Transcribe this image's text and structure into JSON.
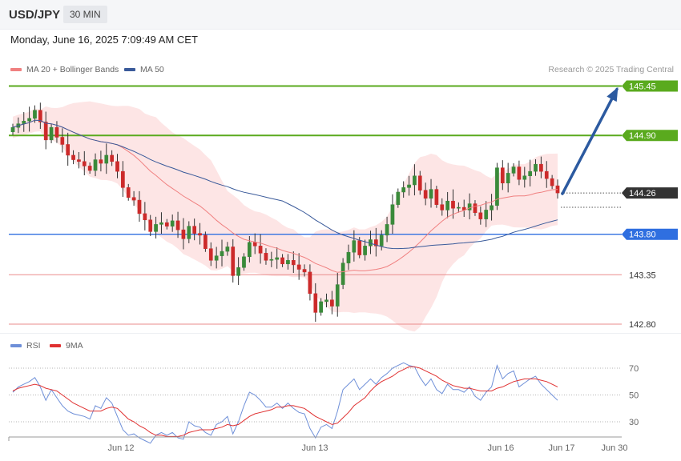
{
  "header": {
    "pair": "USD/JPY",
    "timeframe": "30 MIN"
  },
  "datetime": "Monday, June 16, 2025 7:09:49 AM CET",
  "legend": {
    "ma20": "MA 20 + Bollinger Bands",
    "ma50": "MA 50",
    "credit": "Research © 2025 Trading Central"
  },
  "rsi_legend": {
    "rsi": "RSI",
    "ma9": "9MA"
  },
  "colors": {
    "up": "#3a8a3a",
    "down": "#cc2a2a",
    "ma20": "#f08080",
    "ma50": "#3a5a9a",
    "band": "#fde0e0",
    "resistance": "#5aaa1e",
    "support": "#2f6fe0",
    "target": "#ea8b8b",
    "arrow": "#2c5aa0",
    "rsi": "#6e8fd8",
    "rsi_ma": "#e03030"
  },
  "chart_data": [
    {
      "type": "candlestick",
      "title": "USD/JPY",
      "timeframe": "30 MIN",
      "ylim": [
        142.7,
        145.6
      ],
      "x_ticks": [
        "Jun 12",
        "Jun 13",
        "Jun 16",
        "Jun 17",
        "Jun 30"
      ],
      "levels": [
        {
          "label": "145.45",
          "value": 145.45,
          "kind": "resistance"
        },
        {
          "label": "144.90",
          "value": 144.9,
          "kind": "resistance"
        },
        {
          "label": "144.26",
          "value": 144.26,
          "kind": "current"
        },
        {
          "label": "143.80",
          "value": 143.8,
          "kind": "support"
        },
        {
          "label": "143.35",
          "value": 143.35,
          "kind": "target"
        },
        {
          "label": "142.80",
          "value": 142.8,
          "kind": "target"
        }
      ],
      "projection": {
        "from": 144.26,
        "to": 145.45
      },
      "close": [
        144.99,
        145.03,
        145.06,
        145.09,
        145.18,
        145.05,
        144.85,
        144.99,
        144.88,
        144.8,
        144.68,
        144.63,
        144.61,
        144.56,
        144.51,
        144.63,
        144.59,
        144.68,
        144.61,
        144.5,
        144.32,
        144.21,
        144.18,
        144.03,
        143.96,
        143.83,
        143.91,
        143.93,
        143.89,
        143.95,
        143.85,
        143.75,
        143.89,
        143.81,
        143.79,
        143.64,
        143.51,
        143.56,
        143.61,
        143.66,
        143.34,
        143.43,
        143.55,
        143.71,
        143.67,
        143.59,
        143.51,
        143.52,
        143.54,
        143.47,
        143.51,
        143.46,
        143.41,
        143.38,
        143.14,
        142.93,
        143.05,
        143.07,
        143.0,
        143.24,
        143.48,
        143.6,
        143.73,
        143.57,
        143.67,
        143.74,
        143.67,
        143.79,
        143.91,
        144.13,
        144.27,
        144.32,
        144.35,
        144.45,
        144.29,
        144.2,
        144.3,
        144.13,
        144.07,
        144.17,
        144.09,
        144.1,
        144.07,
        144.14,
        144.04,
        143.97,
        144.07,
        144.12,
        144.54,
        144.37,
        144.48,
        144.55,
        144.41,
        144.45,
        144.5,
        144.58,
        144.5,
        144.42,
        144.34,
        144.26
      ],
      "rsi": {
        "ylim": [
          10,
          80
        ],
        "levels": [
          70,
          50,
          30
        ],
        "values": [
          52,
          56,
          58,
          60,
          63,
          56,
          46,
          54,
          48,
          42,
          38,
          36,
          35,
          34,
          32,
          42,
          40,
          48,
          44,
          34,
          24,
          20,
          21,
          18,
          16,
          14,
          20,
          22,
          20,
          22,
          18,
          17,
          30,
          27,
          26,
          22,
          20,
          28,
          30,
          34,
          21,
          30,
          42,
          52,
          50,
          46,
          41,
          41,
          44,
          40,
          44,
          40,
          37,
          36,
          25,
          18,
          26,
          28,
          25,
          38,
          54,
          58,
          62,
          54,
          58,
          62,
          58,
          63,
          66,
          70,
          72,
          74,
          72,
          71,
          63,
          57,
          62,
          54,
          51,
          58,
          54,
          54,
          52,
          56,
          49,
          46,
          52,
          56,
          72,
          62,
          66,
          68,
          56,
          59,
          62,
          64,
          58,
          54,
          50,
          46
        ],
        "ma9": [
          53,
          55,
          56,
          57,
          58,
          57,
          55,
          54,
          53,
          50,
          47,
          44,
          42,
          40,
          38,
          38,
          38,
          40,
          41,
          40,
          36,
          32,
          30,
          27,
          25,
          22,
          20,
          20,
          19,
          19,
          19,
          20,
          22,
          23,
          24,
          24,
          24,
          25,
          26,
          28,
          27,
          28,
          31,
          34,
          36,
          37,
          38,
          39,
          41,
          41,
          42,
          42,
          41,
          40,
          37,
          34,
          32,
          30,
          28,
          29,
          33,
          37,
          42,
          45,
          48,
          53,
          57,
          60,
          62,
          64,
          67,
          69,
          71,
          71,
          70,
          68,
          66,
          64,
          61,
          59,
          57,
          56,
          55,
          55,
          54,
          53,
          53,
          53,
          55,
          56,
          58,
          60,
          61,
          62,
          62,
          62,
          61,
          60,
          58,
          56
        ]
      }
    }
  ]
}
